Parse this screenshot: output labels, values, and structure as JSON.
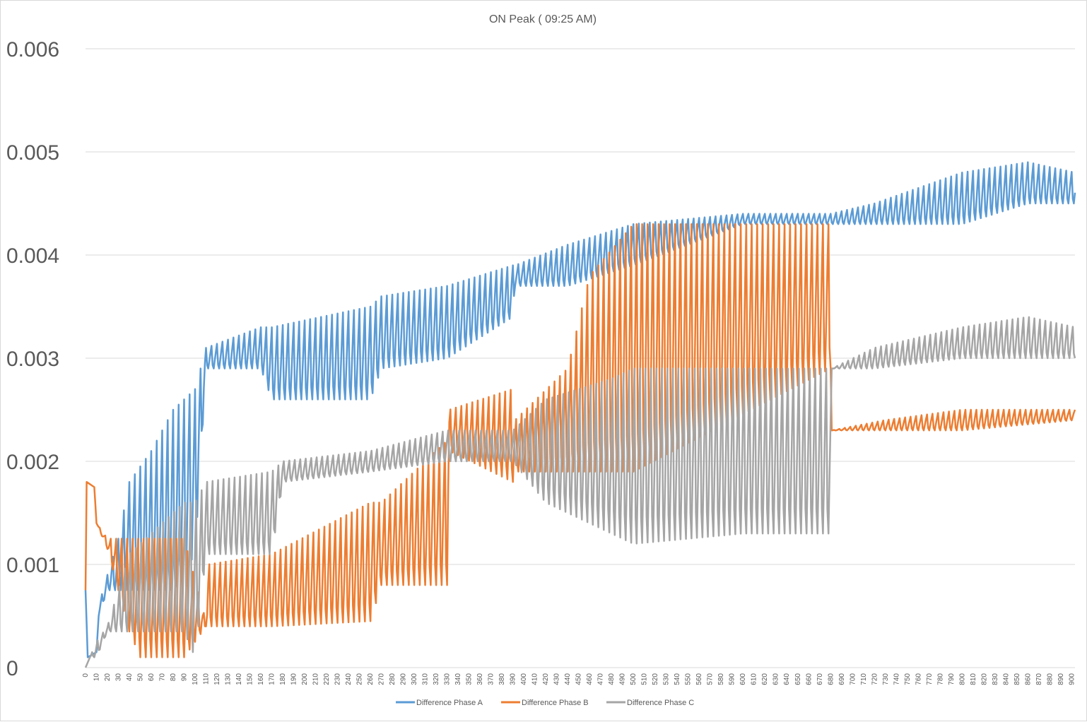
{
  "chart_data": {
    "type": "line",
    "title": "ON Peak ( 09:25 AM)",
    "xlabel": "",
    "ylabel": "",
    "xlim": [
      0,
      903
    ],
    "ylim": [
      0,
      0.006
    ],
    "y_ticks": [
      "0",
      "0.001",
      "0.002",
      "0.003",
      "0.004",
      "0.005",
      "0.006"
    ],
    "y_tick_values": [
      0,
      0.001,
      0.002,
      0.003,
      0.004,
      0.005,
      0.006
    ],
    "x_tick_step": 10,
    "x_tick_max": 900,
    "grid": true,
    "legend_position": "bottom",
    "oscillation_period": 5,
    "series": [
      {
        "name": "Difference Phase A",
        "color": "#5b9bd5",
        "envelope": [
          [
            0,
            0.00075,
            0.00075
          ],
          [
            2,
            0.0001,
            0.0001
          ],
          [
            10,
            0.00015,
            0.00015
          ],
          [
            12,
            0.0005,
            0.0006
          ],
          [
            20,
            0.00075,
            0.0009
          ],
          [
            30,
            0.00075,
            0.00125
          ],
          [
            40,
            0.00075,
            0.0018
          ],
          [
            60,
            0.00075,
            0.0021
          ],
          [
            80,
            0.00075,
            0.0025
          ],
          [
            100,
            0.0011,
            0.0027
          ],
          [
            110,
            0.0029,
            0.0031
          ],
          [
            160,
            0.0029,
            0.0033
          ],
          [
            170,
            0.0026,
            0.0033
          ],
          [
            260,
            0.0026,
            0.0035
          ],
          [
            270,
            0.0029,
            0.0036
          ],
          [
            330,
            0.003,
            0.0037
          ],
          [
            390,
            0.0034,
            0.0039
          ],
          [
            392,
            0.0037,
            0.0039
          ],
          [
            440,
            0.0037,
            0.0041
          ],
          [
            500,
            0.0039,
            0.0043
          ],
          [
            600,
            0.0043,
            0.0044
          ],
          [
            680,
            0.0043,
            0.0044
          ],
          [
            720,
            0.0043,
            0.0045
          ],
          [
            800,
            0.0043,
            0.0048
          ],
          [
            860,
            0.0045,
            0.0049
          ],
          [
            903,
            0.0045,
            0.0048
          ]
        ]
      },
      {
        "name": "Difference Phase B",
        "color": "#ed7d31",
        "envelope": [
          [
            0,
            0.00075,
            0.00075
          ],
          [
            1,
            0.0018,
            0.0018
          ],
          [
            8,
            0.00175,
            0.00175
          ],
          [
            10,
            0.0014,
            0.0014
          ],
          [
            20,
            0.00115,
            0.00125
          ],
          [
            30,
            0.00075,
            0.00125
          ],
          [
            40,
            0.00035,
            0.00125
          ],
          [
            50,
            0.0001,
            0.00125
          ],
          [
            90,
            0.0001,
            0.00125
          ],
          [
            110,
            0.0004,
            0.00045
          ],
          [
            112,
            0.0004,
            0.001
          ],
          [
            170,
            0.0004,
            0.0011
          ],
          [
            260,
            0.00045,
            0.0016
          ],
          [
            270,
            0.0008,
            0.0016
          ],
          [
            330,
            0.0008,
            0.0022
          ],
          [
            332,
            0.0021,
            0.0025
          ],
          [
            390,
            0.0018,
            0.0027
          ],
          [
            392,
            0.0019,
            0.0024
          ],
          [
            440,
            0.0019,
            0.0029
          ],
          [
            460,
            0.0019,
            0.0038
          ],
          [
            500,
            0.0019,
            0.0043
          ],
          [
            680,
            0.0029,
            0.0043
          ],
          [
            681,
            0.0023,
            0.0023
          ],
          [
            730,
            0.0023,
            0.0024
          ],
          [
            800,
            0.0023,
            0.0025
          ],
          [
            903,
            0.0024,
            0.0025
          ]
        ]
      },
      {
        "name": "Difference Phase C",
        "color": "#a5a5a5",
        "envelope": [
          [
            0,
            0.0,
            0.0
          ],
          [
            4,
            0.0001,
            0.0001
          ],
          [
            10,
            0.0001,
            0.00025
          ],
          [
            20,
            0.00035,
            0.0004
          ],
          [
            30,
            0.00035,
            0.00075
          ],
          [
            40,
            0.00035,
            0.0011
          ],
          [
            60,
            0.00035,
            0.0013
          ],
          [
            90,
            0.00035,
            0.0016
          ],
          [
            100,
            0.0001,
            0.0016
          ],
          [
            110,
            0.0011,
            0.0018
          ],
          [
            170,
            0.0011,
            0.0019
          ],
          [
            180,
            0.0018,
            0.002
          ],
          [
            260,
            0.0019,
            0.0021
          ],
          [
            330,
            0.002,
            0.0023
          ],
          [
            390,
            0.002,
            0.0023
          ],
          [
            420,
            0.0016,
            0.0026
          ],
          [
            480,
            0.0013,
            0.0028
          ],
          [
            500,
            0.0012,
            0.0029
          ],
          [
            600,
            0.0013,
            0.0029
          ],
          [
            680,
            0.0013,
            0.0029
          ],
          [
            681,
            0.0029,
            0.0029
          ],
          [
            720,
            0.0029,
            0.0031
          ],
          [
            800,
            0.003,
            0.0033
          ],
          [
            860,
            0.003,
            0.0034
          ],
          [
            903,
            0.003,
            0.0033
          ]
        ]
      }
    ]
  }
}
